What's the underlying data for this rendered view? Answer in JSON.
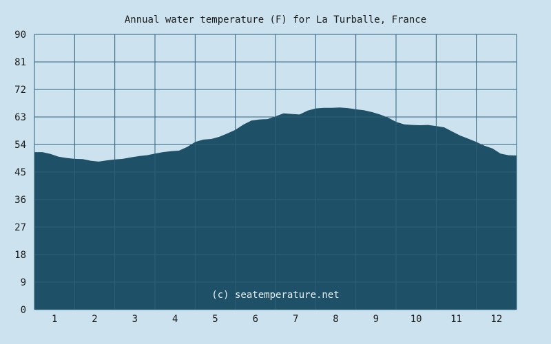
{
  "chart_data": {
    "type": "area",
    "title": "Annual water temperature (F) for La Turballe, France",
    "xlabel": "",
    "ylabel": "",
    "x_ticks": [
      "1",
      "2",
      "3",
      "4",
      "5",
      "6",
      "7",
      "8",
      "9",
      "10",
      "11",
      "12"
    ],
    "y_ticks": [
      "0",
      "9",
      "18",
      "27",
      "36",
      "45",
      "54",
      "63",
      "72",
      "81",
      "90"
    ],
    "xlim": [
      0.5,
      12.5
    ],
    "ylim": [
      0,
      90
    ],
    "grid": true,
    "watermark": "(c) seatemperature.net",
    "colors": {
      "background": "#cce3ef",
      "plot_background": "#cce3ef",
      "fill": "#1e5068",
      "grid": "#2d5f78"
    },
    "series": [
      {
        "x": [
          0.5,
          0.7,
          0.9,
          1.1,
          1.3,
          1.5,
          1.7,
          1.9,
          2.1,
          2.3,
          2.5,
          2.7,
          2.9,
          3.1,
          3.3,
          3.5,
          3.7,
          3.9,
          4.1,
          4.3,
          4.5,
          4.7,
          4.9,
          5.1,
          5.3,
          5.5,
          5.7,
          5.9,
          6.1,
          6.3,
          6.5,
          6.7,
          6.9,
          7.1,
          7.3,
          7.5,
          7.7,
          7.9,
          8.1,
          8.3,
          8.5,
          8.7,
          8.9,
          9.1,
          9.3,
          9.5,
          9.7,
          9.9,
          10.1,
          10.3,
          10.5,
          10.7,
          10.9,
          11.1,
          11.3,
          11.5,
          11.7,
          11.9,
          12.1,
          12.3,
          12.5
        ],
        "y": [
          51.5,
          51.5,
          50.9,
          50.0,
          49.6,
          49.3,
          49.2,
          48.7,
          48.4,
          48.8,
          49.1,
          49.3,
          49.8,
          50.2,
          50.5,
          51.0,
          51.5,
          51.8,
          52.0,
          53.2,
          54.8,
          55.6,
          55.8,
          56.5,
          57.6,
          58.8,
          60.5,
          61.8,
          62.2,
          62.3,
          63.2,
          64.2,
          64.0,
          63.8,
          65.1,
          65.8,
          66.0,
          66.0,
          66.1,
          65.9,
          65.5,
          65.2,
          64.6,
          63.8,
          62.8,
          61.4,
          60.6,
          60.4,
          60.3,
          60.4,
          60.0,
          59.6,
          58.2,
          56.9,
          55.9,
          54.8,
          53.6,
          52.7,
          51.0,
          50.5,
          50.4
        ]
      }
    ]
  }
}
